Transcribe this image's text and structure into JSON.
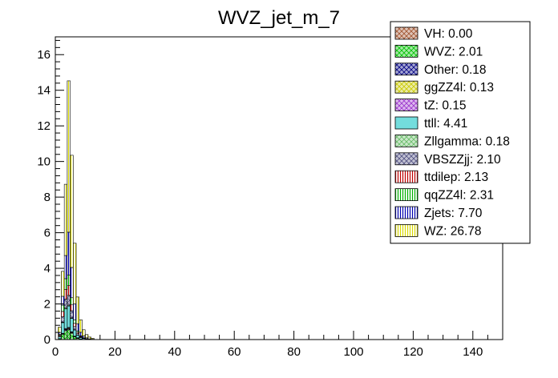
{
  "chart_data": {
    "type": "bar",
    "title": "WVZ_jet_m_7",
    "xlabel": "",
    "ylabel": "",
    "xlim": [
      0,
      150
    ],
    "ylim": [
      0,
      17
    ],
    "x_ticks": [
      0,
      20,
      40,
      60,
      80,
      100,
      120,
      140
    ],
    "y_ticks": [
      0,
      2,
      4,
      6,
      8,
      10,
      12,
      14,
      16
    ],
    "stacked": true,
    "bin_width": 1,
    "bin_edges_start": 1,
    "grid": false,
    "legend_position": "top-right",
    "series": [
      {
        "name": "VH",
        "total": "0.00",
        "color": "#a0522d",
        "fill": "crosshatch",
        "values": [
          0,
          0,
          0,
          0,
          0,
          0,
          0,
          0,
          0,
          0,
          0,
          0
        ]
      },
      {
        "name": "WVZ",
        "total": "2.01",
        "color": "#00c000",
        "fill": "crosshatch",
        "values": [
          0.05,
          0.3,
          0.5,
          0.55,
          0.35,
          0.15,
          0.07,
          0.03,
          0.01,
          0,
          0,
          0
        ]
      },
      {
        "name": "Other",
        "total": "0.18",
        "color": "#000080",
        "fill": "crosshatch",
        "values": [
          0,
          0.02,
          0.05,
          0.05,
          0.03,
          0.02,
          0.01,
          0,
          0,
          0,
          0,
          0
        ]
      },
      {
        "name": "ggZZ4l",
        "total": "0.13",
        "color": "#c8c800",
        "fill": "crosshatch",
        "values": [
          0,
          0.01,
          0.03,
          0.04,
          0.03,
          0.01,
          0.01,
          0,
          0,
          0,
          0,
          0
        ]
      },
      {
        "name": "tZ",
        "total": "0.15",
        "color": "#9932cc",
        "fill": "crosshatch",
        "values": [
          0,
          0.02,
          0.04,
          0.04,
          0.03,
          0.01,
          0.01,
          0,
          0,
          0,
          0,
          0
        ]
      },
      {
        "name": "ttll",
        "total": "4.41",
        "color": "#00c0c0",
        "fill": "solid",
        "values": [
          0.1,
          0.6,
          1.1,
          1.2,
          0.75,
          0.35,
          0.15,
          0.08,
          0.05,
          0.02,
          0.01,
          0
        ]
      },
      {
        "name": "Zllgamma",
        "total": "0.18",
        "color": "#66bb66",
        "fill": "crosshatch",
        "values": [
          0,
          0.03,
          0.05,
          0.05,
          0.03,
          0.01,
          0.01,
          0,
          0,
          0,
          0,
          0
        ]
      },
      {
        "name": "VBSZZjj",
        "total": "2.10",
        "color": "#505080",
        "fill": "crosshatch",
        "values": [
          0.05,
          0.3,
          0.5,
          0.55,
          0.4,
          0.18,
          0.07,
          0.03,
          0.01,
          0.01,
          0,
          0
        ]
      },
      {
        "name": "ttdilep",
        "total": "2.13",
        "color": "#c00000",
        "fill": "vertical",
        "values": [
          0.05,
          0.3,
          0.55,
          0.55,
          0.35,
          0.18,
          0.08,
          0.04,
          0.02,
          0.01,
          0,
          0
        ]
      },
      {
        "name": "qqZZ4l",
        "total": "2.31",
        "color": "#00b000",
        "fill": "vertical",
        "values": [
          0.05,
          0.35,
          0.6,
          0.6,
          0.38,
          0.2,
          0.08,
          0.03,
          0.01,
          0.01,
          0,
          0
        ]
      },
      {
        "name": "Zjets",
        "total": "7.70",
        "color": "#0000b0",
        "fill": "vertical",
        "values": [
          0.1,
          0.5,
          1.3,
          2.4,
          1.7,
          0.9,
          0.4,
          0.2,
          0.1,
          0.05,
          0.03,
          0.02
        ]
      },
      {
        "name": "WZ",
        "total": "26.78",
        "color": "#d8d800",
        "fill": "vertical",
        "values": [
          0.3,
          1.4,
          4.0,
          8.5,
          6.3,
          3.4,
          1.5,
          0.7,
          0.35,
          0.18,
          0.1,
          0.05
        ]
      }
    ]
  }
}
